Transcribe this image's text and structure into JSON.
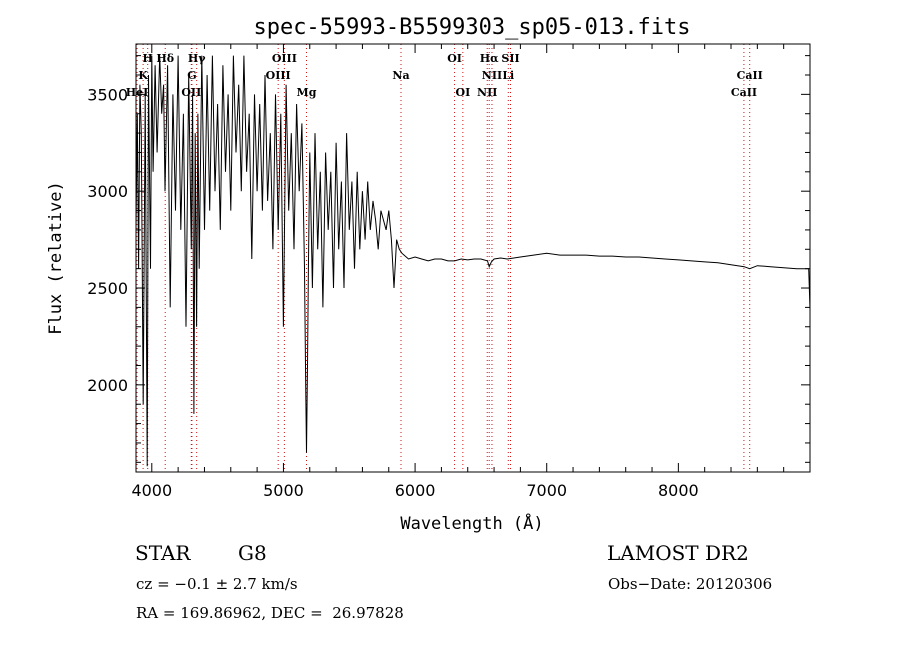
{
  "chart_data": {
    "type": "line",
    "title": "spec-55993-B5599303_sp05-013.fits",
    "xlabel": "Wavelength (Å)",
    "ylabel": "Flux (relative)",
    "xlim": [
      3880,
      9000
    ],
    "ylim": [
      1550,
      3760
    ],
    "x_ticks": [
      4000,
      5000,
      6000,
      7000,
      8000
    ],
    "y_ticks": [
      2000,
      2500,
      3000,
      3500
    ],
    "x_tick_labels": [
      "4000",
      "5000",
      "6000",
      "7000",
      "8000"
    ],
    "y_tick_labels": [
      "2000",
      "2500",
      "3000",
      "3500"
    ],
    "series": [
      {
        "name": "flux",
        "x": [
          3880,
          3890,
          3900,
          3910,
          3920,
          3935,
          3950,
          3965,
          3975,
          3990,
          4000,
          4010,
          4025,
          4040,
          4060,
          4075,
          4090,
          4100,
          4120,
          4140,
          4160,
          4180,
          4200,
          4220,
          4240,
          4260,
          4280,
          4300,
          4310,
          4320,
          4330,
          4340,
          4350,
          4360,
          4380,
          4400,
          4420,
          4440,
          4460,
          4480,
          4500,
          4520,
          4540,
          4560,
          4580,
          4600,
          4620,
          4640,
          4660,
          4680,
          4700,
          4720,
          4740,
          4760,
          4780,
          4800,
          4820,
          4840,
          4860,
          4880,
          4900,
          4920,
          4940,
          4960,
          4980,
          5000,
          5020,
          5040,
          5060,
          5080,
          5100,
          5120,
          5140,
          5160,
          5170,
          5175,
          5183,
          5190,
          5200,
          5220,
          5240,
          5260,
          5280,
          5300,
          5320,
          5340,
          5360,
          5380,
          5400,
          5420,
          5440,
          5460,
          5480,
          5500,
          5520,
          5540,
          5560,
          5580,
          5600,
          5620,
          5640,
          5660,
          5680,
          5700,
          5720,
          5740,
          5760,
          5780,
          5800,
          5820,
          5840,
          5860,
          5880,
          5900,
          5950,
          6000,
          6050,
          6100,
          6150,
          6200,
          6250,
          6300,
          6350,
          6400,
          6450,
          6500,
          6550,
          6563,
          6580,
          6600,
          6650,
          6700,
          6750,
          6800,
          6900,
          7000,
          7100,
          7200,
          7300,
          7400,
          7500,
          7600,
          7700,
          7800,
          7900,
          8000,
          8100,
          8200,
          8300,
          8400,
          8500,
          8542,
          8600,
          8700,
          8800,
          8900,
          8990,
          9000
        ],
        "y": [
          2800,
          3400,
          2600,
          3550,
          3300,
          1900,
          3500,
          1580,
          3600,
          2600,
          3700,
          3100,
          3650,
          3200,
          3700,
          3400,
          3550,
          3000,
          3650,
          2400,
          3500,
          2900,
          3700,
          2800,
          3400,
          2300,
          3600,
          2700,
          3500,
          1850,
          3300,
          2300,
          3400,
          2600,
          3700,
          2800,
          3600,
          2900,
          3700,
          3000,
          3450,
          2800,
          3650,
          3100,
          3500,
          2900,
          3700,
          3200,
          3550,
          3000,
          3700,
          3100,
          3400,
          2650,
          3500,
          3000,
          3450,
          2900,
          3600,
          2950,
          3300,
          2700,
          3500,
          2800,
          3400,
          2300,
          3550,
          2900,
          3300,
          2700,
          3450,
          3000,
          3350,
          2600,
          1950,
          1650,
          2100,
          2600,
          3200,
          2500,
          3300,
          2700,
          3100,
          2400,
          3200,
          2800,
          3100,
          2500,
          3250,
          2700,
          3050,
          2500,
          3300,
          2800,
          3050,
          2600,
          3100,
          2700,
          3000,
          2750,
          3050,
          2800,
          2950,
          2850,
          2700,
          2900,
          2850,
          2800,
          2900,
          2750,
          2500,
          2750,
          2700,
          2680,
          2650,
          2660,
          2650,
          2640,
          2650,
          2650,
          2640,
          2640,
          2650,
          2645,
          2650,
          2650,
          2640,
          2610,
          2635,
          2650,
          2655,
          2650,
          2655,
          2660,
          2670,
          2680,
          2670,
          2670,
          2670,
          2665,
          2665,
          2660,
          2660,
          2655,
          2650,
          2645,
          2640,
          2635,
          2630,
          2620,
          2610,
          2600,
          2615,
          2610,
          2605,
          2600,
          2600,
          2390
        ]
      }
    ],
    "lines": [
      {
        "name": "H",
        "wavelength": 3969,
        "label_row": 0
      },
      {
        "name": "K",
        "wavelength": 3934,
        "label_row": 1
      },
      {
        "name": "HeI",
        "wavelength": 3888,
        "label_row": 2
      },
      {
        "name": "Hδ",
        "wavelength": 4102,
        "label_row": 0
      },
      {
        "name": "Hγ",
        "wavelength": 4341,
        "label_row": 0
      },
      {
        "name": "G",
        "wavelength": 4305,
        "label_row": 1
      },
      {
        "name": "OII",
        "wavelength": 4300,
        "label_row": 2
      },
      {
        "name": "OIII",
        "wavelength": 5007,
        "label_row": 0
      },
      {
        "name": "OIII",
        "wavelength": 4960,
        "label_row": 1
      },
      {
        "name": "Mg",
        "wavelength": 5175,
        "label_row": 2
      },
      {
        "name": "Na",
        "wavelength": 5893,
        "label_row": 1
      },
      {
        "name": "OI",
        "wavelength": 6300,
        "label_row": 0
      },
      {
        "name": "OI",
        "wavelength": 6363,
        "label_row": 2
      },
      {
        "name": "Hα",
        "wavelength": 6563,
        "label_row": 0
      },
      {
        "name": "SII",
        "wavelength": 6725,
        "label_row": 0
      },
      {
        "name": "NII",
        "wavelength": 6584,
        "label_row": 1
      },
      {
        "name": "Li",
        "wavelength": 6708,
        "label_row": 1
      },
      {
        "name": "NII",
        "wavelength": 6548,
        "label_row": 2
      },
      {
        "name": "CaII",
        "wavelength": 8542,
        "label_row": 1
      },
      {
        "name": "CaII",
        "wavelength": 8498,
        "label_row": 2
      }
    ]
  },
  "info": {
    "object_class": "STAR",
    "subclass": "G8",
    "survey": "LAMOST DR2",
    "cz": "cz = −0.1 ± 2.7 km/s",
    "obs_date": "Obs−Date: 20120306",
    "coords": "RA = 169.86962, DEC =  26.97828"
  },
  "colors": {
    "line_marker": "#d01010",
    "spectrum": "#000000"
  }
}
